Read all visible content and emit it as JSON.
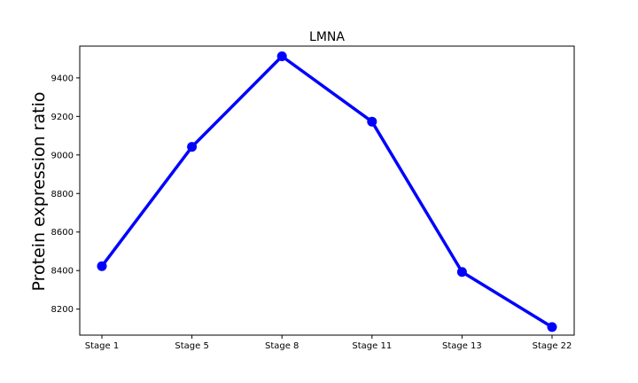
{
  "chart_data": {
    "type": "line",
    "title": "LMNA",
    "xlabel": "",
    "ylabel": "Protein expression ratio",
    "categories": [
      "Stage 1",
      "Stage 5",
      "Stage 8",
      "Stage 11",
      "Stage 13",
      "Stage 22"
    ],
    "series": [
      {
        "values": [
          8423,
          9042,
          9512,
          9173,
          8393,
          8107
        ]
      }
    ],
    "ylim": [
      8065,
      9565
    ],
    "yticks": [
      8200,
      8400,
      8600,
      8800,
      9000,
      9200,
      9400
    ],
    "grid": false,
    "colors": {
      "line": "#0000ff",
      "marker": "#0000ff",
      "axes": "#000000"
    }
  }
}
